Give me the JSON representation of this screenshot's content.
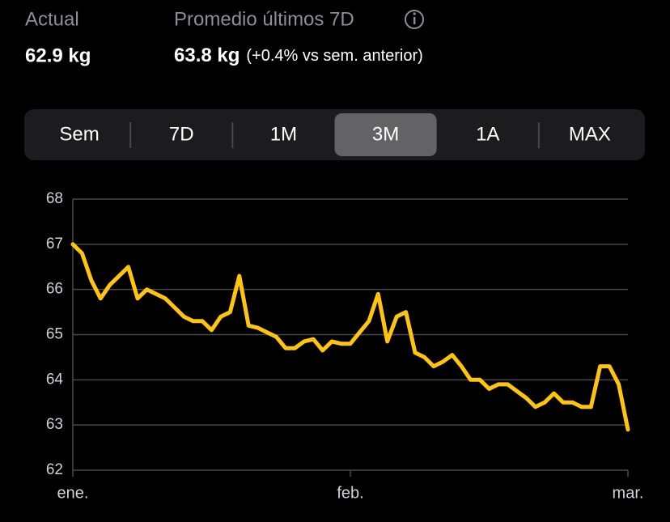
{
  "header": {
    "current_label": "Actual",
    "current_value": "62.9 kg",
    "average_label": "Promedio últimos 7D",
    "average_value": "63.8 kg",
    "average_change": "(+0.4% vs sem. anterior)"
  },
  "segments": {
    "items": [
      "Sem",
      "7D",
      "1M",
      "3M",
      "1A",
      "MAX"
    ],
    "selected": 3
  },
  "chart_data": {
    "type": "line",
    "categories": [
      "ene.",
      null,
      null,
      null,
      null,
      null,
      null,
      null,
      null,
      null,
      null,
      null,
      null,
      null,
      null,
      null,
      null,
      null,
      null,
      null,
      null,
      null,
      null,
      null,
      null,
      null,
      null,
      null,
      null,
      null,
      "feb.",
      null,
      null,
      null,
      null,
      null,
      null,
      null,
      null,
      null,
      null,
      null,
      null,
      null,
      null,
      null,
      null,
      null,
      null,
      null,
      null,
      null,
      null,
      null,
      null,
      null,
      null,
      null,
      null,
      null,
      "mar."
    ],
    "series": [
      {
        "color": "#ffc40c",
        "values": [
          67.0,
          66.8,
          66.2,
          65.8,
          66.1,
          66.3,
          66.5,
          65.8,
          66.0,
          65.9,
          65.8,
          65.6,
          65.4,
          65.3,
          65.3,
          65.1,
          65.4,
          65.5,
          66.3,
          65.2,
          65.15,
          65.05,
          64.95,
          64.7,
          64.7,
          64.85,
          64.9,
          64.65,
          64.85,
          64.8,
          64.8,
          65.05,
          65.3,
          65.9,
          64.85,
          65.4,
          65.5,
          64.6,
          64.5,
          64.3,
          64.4,
          64.55,
          64.3,
          64.0,
          64.0,
          63.8,
          63.9,
          63.9,
          63.75,
          63.6,
          63.4,
          63.5,
          63.7,
          63.5,
          63.5,
          63.4,
          63.4,
          64.3,
          64.3,
          63.9,
          62.9
        ]
      }
    ],
    "ylim": [
      62,
      68
    ],
    "yticks": [
      62,
      63,
      64,
      65,
      66,
      67,
      68
    ],
    "grid": true
  }
}
